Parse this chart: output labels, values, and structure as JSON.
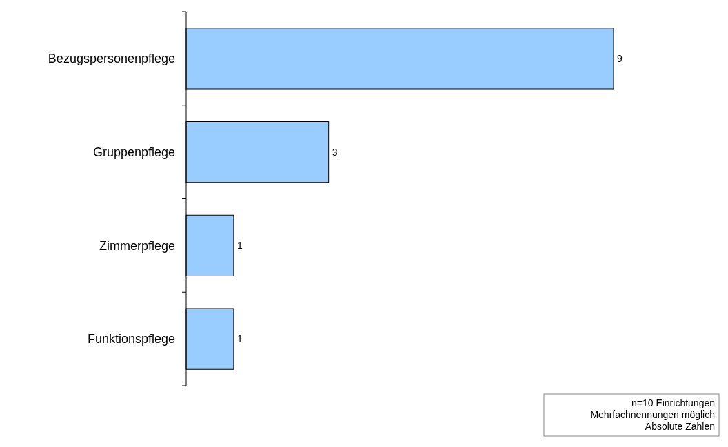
{
  "chart_data": {
    "type": "bar",
    "orientation": "horizontal",
    "categories": [
      "Bezugspersonenpflege",
      "Gruppenpflege",
      "Zimmerpflege",
      "Funktionspflege"
    ],
    "values": [
      9,
      3,
      1,
      1
    ],
    "color": "#99ccff",
    "data_labels": true,
    "annotations": [
      "n=10 Einrichtungen",
      "Mehrfachnennungen möglich",
      "Absolute Zahlen"
    ]
  }
}
